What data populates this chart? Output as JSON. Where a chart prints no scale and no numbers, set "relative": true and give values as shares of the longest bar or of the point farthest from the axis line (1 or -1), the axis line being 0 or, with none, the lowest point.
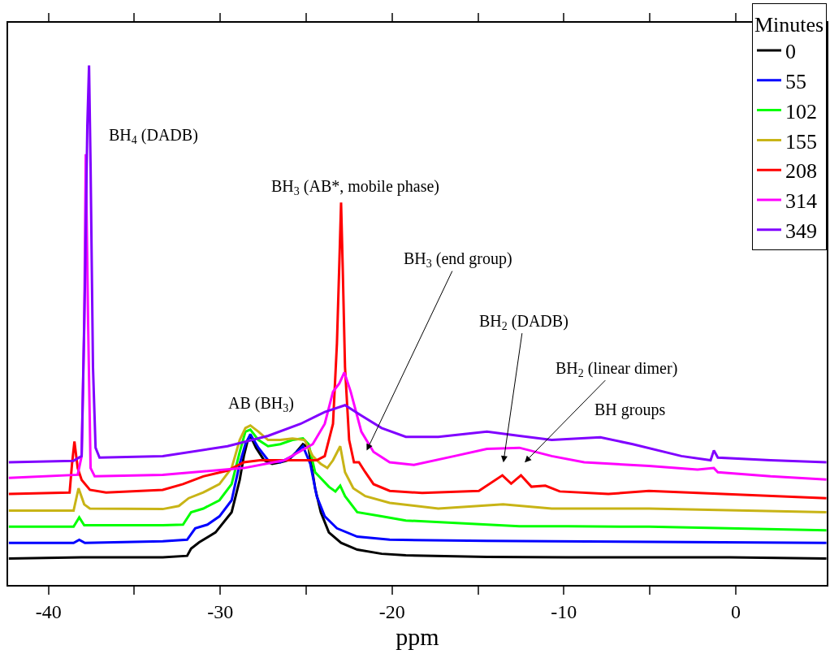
{
  "chart_data": {
    "type": "line",
    "relative": true,
    "xlabel": "ppm",
    "legend_title": "Minutes",
    "legend": "top right",
    "grid": false,
    "marker": "none",
    "line_style": "solid",
    "xlim": [
      -42.35,
      5.3
    ],
    "xticks": [
      -40,
      {
        "value": -35,
        "label": null
      },
      -30,
      {
        "value": -25,
        "label": null
      },
      -20,
      {
        "value": -15,
        "label": null
      },
      -10,
      {
        "value": -5,
        "label": null
      },
      0
    ],
    "annotations": [
      "BH$_{4}$ (DADB)",
      "BH$_{3}$ (AB*, mobile phase)",
      "BH$_{3}$ (end group)",
      "BH$_{2}$ (DADB)",
      "BH$_{2}$ (linear dimer)",
      "AB (BH$_{3}$)",
      "BH groups"
    ],
    "series": [
      {
        "name": "0",
        "color": "#000000",
        "x": [
          -42.31,
          -38.07,
          -33.35,
          -31.93,
          -31.7,
          -31.23,
          -30.28,
          -29.34,
          -28.87,
          -28.63,
          -28.4,
          -28.25,
          -27.92,
          -27.45,
          -26.98,
          -26.51,
          -26.04,
          -25.57,
          -25.19,
          -24.86,
          -24.48,
          -24.15,
          -23.68,
          -22.97,
          -22.03,
          -20.61,
          -19.2,
          -14.48,
          -9.76,
          -5.05,
          -0.33,
          5.28
        ],
        "values": [
          0.051,
          0.053,
          0.053,
          0.056,
          0.07,
          0.082,
          0.101,
          0.14,
          0.202,
          0.248,
          0.279,
          0.287,
          0.264,
          0.24,
          0.233,
          0.236,
          0.24,
          0.256,
          0.271,
          0.264,
          0.186,
          0.14,
          0.101,
          0.081,
          0.068,
          0.06,
          0.057,
          0.054,
          0.053,
          0.053,
          0.053,
          0.051
        ]
      },
      {
        "name": "55",
        "color": "#0000ff",
        "x": [
          -42.31,
          -38.54,
          -38.21,
          -37.88,
          -33.35,
          -31.93,
          -31.46,
          -30.75,
          -30.05,
          -29.34,
          -28.87,
          -28.54,
          -28.25,
          -27.78,
          -27.22,
          -26.51,
          -25.8,
          -25.19,
          -24.76,
          -24.39,
          -23.92,
          -23.21,
          -22.03,
          -20.14,
          -14.48,
          5.28
        ],
        "values": [
          0.081,
          0.081,
          0.087,
          0.081,
          0.084,
          0.087,
          0.109,
          0.116,
          0.132,
          0.163,
          0.233,
          0.271,
          0.29,
          0.264,
          0.24,
          0.236,
          0.248,
          0.267,
          0.233,
          0.171,
          0.132,
          0.109,
          0.093,
          0.087,
          0.085,
          0.081
        ]
      },
      {
        "name": "102",
        "color": "#00ff00",
        "x": [
          -42.31,
          -38.54,
          -38.21,
          -37.92,
          -33.35,
          -32.17,
          -31.7,
          -30.99,
          -30.05,
          -29.34,
          -28.87,
          -28.54,
          -28.25,
          -27.78,
          -27.22,
          -26.51,
          -25.8,
          -25.19,
          -24.86,
          -24.48,
          -23.68,
          -23.3,
          -23.02,
          -22.74,
          -22.03,
          -20.61,
          -19.2,
          -12.59,
          -9.76,
          -5.05,
          5.28
        ],
        "values": [
          0.112,
          0.112,
          0.13,
          0.115,
          0.115,
          0.116,
          0.14,
          0.147,
          0.163,
          0.194,
          0.256,
          0.295,
          0.299,
          0.279,
          0.267,
          0.271,
          0.279,
          0.282,
          0.271,
          0.217,
          0.189,
          0.18,
          0.191,
          0.171,
          0.14,
          0.132,
          0.124,
          0.113,
          0.113,
          0.112,
          0.105
        ]
      },
      {
        "name": "155",
        "color": "#c8b416",
        "x": [
          -42.31,
          -38.54,
          -38.25,
          -37.92,
          -37.59,
          -33.35,
          -32.41,
          -31.84,
          -30.99,
          -30.05,
          -29.34,
          -28.87,
          -28.54,
          -28.25,
          -27.78,
          -27.22,
          -26.51,
          -25.8,
          -25.09,
          -24.62,
          -24.15,
          -23.77,
          -23.44,
          -23.02,
          -22.74,
          -22.26,
          -21.56,
          -20.14,
          -17.31,
          -13.54,
          -10.71,
          -5.05,
          5.28
        ],
        "values": [
          0.143,
          0.143,
          0.186,
          0.155,
          0.147,
          0.146,
          0.152,
          0.167,
          0.178,
          0.194,
          0.225,
          0.279,
          0.302,
          0.307,
          0.295,
          0.279,
          0.279,
          0.282,
          0.279,
          0.248,
          0.233,
          0.225,
          0.24,
          0.267,
          0.217,
          0.186,
          0.171,
          0.158,
          0.147,
          0.155,
          0.147,
          0.147,
          0.14
        ]
      },
      {
        "name": "208",
        "color": "#ff0000",
        "x": [
          -42.31,
          -38.77,
          -38.63,
          -38.49,
          -38.3,
          -38.07,
          -37.59,
          -36.65,
          -33.35,
          -32.17,
          -30.99,
          -29.58,
          -28.63,
          -27.69,
          -26.75,
          -25.33,
          -24.39,
          -23.92,
          -23.44,
          -23.21,
          -23.07,
          -22.97,
          -22.88,
          -22.74,
          -22.5,
          -22.22,
          -21.93,
          -21.56,
          -21.08,
          -20.14,
          -18.25,
          -14.95,
          -13.58,
          -13.07,
          -12.5,
          -11.89,
          -11.08,
          -10.24,
          -7.41,
          -5.05,
          5.28
        ],
        "values": [
          0.175,
          0.178,
          0.233,
          0.276,
          0.225,
          0.202,
          0.183,
          0.178,
          0.183,
          0.194,
          0.209,
          0.22,
          0.236,
          0.24,
          0.24,
          0.24,
          0.24,
          0.248,
          0.31,
          0.465,
          0.62,
          0.736,
          0.62,
          0.419,
          0.279,
          0.236,
          0.236,
          0.217,
          0.194,
          0.181,
          0.177,
          0.181,
          0.211,
          0.195,
          0.211,
          0.189,
          0.191,
          0.18,
          0.175,
          0.181,
          0.167
        ]
      },
      {
        "name": "314",
        "color": "#ff00ff",
        "x": [
          -42.31,
          -38.3,
          -38.07,
          -37.92,
          -37.83,
          -37.69,
          -37.55,
          -37.31,
          -33.35,
          -28.63,
          -26.27,
          -24.62,
          -23.92,
          -23.44,
          -23.07,
          -22.78,
          -22.41,
          -21.79,
          -21.08,
          -20.14,
          -18.73,
          -16.37,
          -14.48,
          -12.59,
          -10.71,
          -8.82,
          -5.05,
          -2.22,
          -1.27,
          -1.04,
          2.03,
          5.28
        ],
        "values": [
          0.206,
          0.212,
          0.248,
          0.496,
          0.829,
          0.496,
          0.225,
          0.209,
          0.212,
          0.225,
          0.24,
          0.271,
          0.31,
          0.372,
          0.388,
          0.409,
          0.372,
          0.295,
          0.256,
          0.236,
          0.231,
          0.248,
          0.262,
          0.264,
          0.248,
          0.236,
          0.229,
          0.222,
          0.225,
          0.217,
          0.209,
          0.203
        ]
      },
      {
        "name": "349",
        "color": "#8000ff",
        "x": [
          -42.31,
          -38.54,
          -38.07,
          -37.88,
          -37.74,
          -37.64,
          -37.55,
          -37.41,
          -37.26,
          -37.03,
          -33.35,
          -29.58,
          -27.22,
          -25.33,
          -23.92,
          -22.74,
          -21.79,
          -20.61,
          -19.2,
          -17.31,
          -14.48,
          -12.59,
          -10.71,
          -7.88,
          -5.99,
          -3.16,
          -1.46,
          -1.27,
          -1.04,
          2.03,
          5.28
        ],
        "values": [
          0.236,
          0.239,
          0.248,
          0.574,
          0.884,
          1.0,
          0.806,
          0.419,
          0.264,
          0.245,
          0.248,
          0.267,
          0.287,
          0.31,
          0.333,
          0.346,
          0.326,
          0.302,
          0.285,
          0.285,
          0.295,
          0.287,
          0.279,
          0.284,
          0.271,
          0.248,
          0.24,
          0.259,
          0.245,
          0.24,
          0.236
        ]
      }
    ]
  }
}
